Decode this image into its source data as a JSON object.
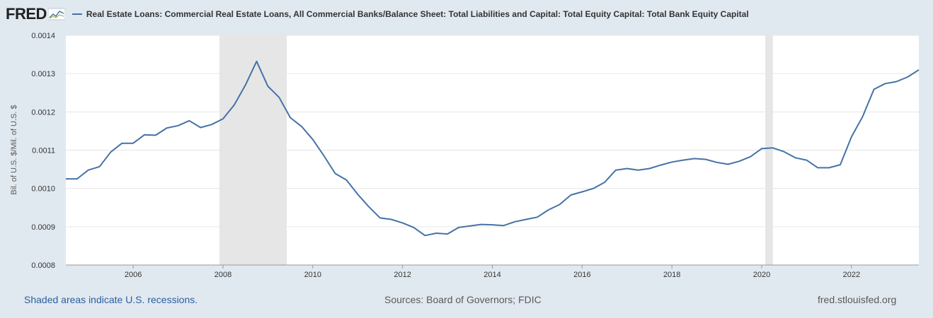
{
  "header": {
    "logo_text": "FRED",
    "legend_label": "Real Estate Loans: Commercial Real Estate Loans, All Commercial Banks/Balance Sheet: Total Liabilities and Capital: Total Equity Capital: Total Bank Equity Capital"
  },
  "footer": {
    "recessions_note": "Shaded areas indicate U.S. recessions.",
    "sources": "Sources: Board of Governors; FDIC",
    "site": "fred.stlouisfed.org"
  },
  "colors": {
    "line": "#4572a7",
    "background": "#e1e9f0",
    "plot_background": "#ffffff",
    "recession_shade": "#e6e6e6",
    "grid": "#e6e6e6"
  },
  "chart_data": {
    "type": "line",
    "title": "",
    "xlabel": "",
    "ylabel": "Bil. of U.S. $/Mil. of U.S. $",
    "ylim": [
      0.0008,
      0.0014
    ],
    "xlim": [
      2004.5,
      2023.5
    ],
    "yticks": [
      "0.0008",
      "0.0009",
      "0.0010",
      "0.0011",
      "0.0012",
      "0.0013",
      "0.0014"
    ],
    "xticks": [
      "2006",
      "2008",
      "2010",
      "2012",
      "2014",
      "2016",
      "2018",
      "2020",
      "2022"
    ],
    "grid": true,
    "recessions": [
      [
        2007.92,
        2009.42
      ],
      [
        2020.08,
        2020.25
      ]
    ],
    "series": [
      {
        "name": "Real Estate Loans: Commercial Real Estate Loans, All Commercial Banks/Balance Sheet: Total Liabilities and Capital: Total Equity Capital: Total Bank Equity Capital",
        "x": [
          2004.5,
          2004.75,
          2005,
          2005.25,
          2005.5,
          2005.75,
          2006,
          2006.25,
          2006.5,
          2006.75,
          2007,
          2007.25,
          2007.5,
          2007.75,
          2008,
          2008.25,
          2008.5,
          2008.75,
          2009,
          2009.25,
          2009.5,
          2009.75,
          2010,
          2010.25,
          2010.5,
          2010.75,
          2011,
          2011.25,
          2011.5,
          2011.75,
          2012,
          2012.25,
          2012.5,
          2012.75,
          2013,
          2013.25,
          2013.5,
          2013.75,
          2014,
          2014.25,
          2014.5,
          2014.75,
          2015,
          2015.25,
          2015.5,
          2015.75,
          2016,
          2016.25,
          2016.5,
          2016.75,
          2017,
          2017.25,
          2017.5,
          2017.75,
          2018,
          2018.25,
          2018.5,
          2018.75,
          2019,
          2019.25,
          2019.5,
          2019.75,
          2020,
          2020.25,
          2020.5,
          2020.75,
          2021,
          2021.25,
          2021.5,
          2021.75,
          2022,
          2022.25,
          2022.5,
          2022.75,
          2023,
          2023.25,
          2023.5
        ],
        "y": [
          0.001025,
          0.001025,
          0.001048,
          0.001057,
          0.001095,
          0.001118,
          0.001118,
          0.00114,
          0.001139,
          0.001158,
          0.001164,
          0.001177,
          0.001159,
          0.001167,
          0.001182,
          0.001218,
          0.00127,
          0.001332,
          0.001267,
          0.001238,
          0.001185,
          0.001162,
          0.001128,
          0.001085,
          0.001039,
          0.001022,
          0.000985,
          0.000952,
          0.000923,
          0.000919,
          0.00091,
          0.000898,
          0.000877,
          0.000883,
          0.000881,
          0.000898,
          0.000902,
          0.000906,
          0.000905,
          0.000903,
          0.000913,
          0.000919,
          0.000925,
          0.000944,
          0.000958,
          0.000983,
          0.000991,
          0.001,
          0.001016,
          0.001048,
          0.001052,
          0.001048,
          0.001052,
          0.001061,
          0.001069,
          0.001074,
          0.001078,
          0.001076,
          0.001068,
          0.001063,
          0.001071,
          0.001083,
          0.001104,
          0.001106,
          0.001096,
          0.00108,
          0.001074,
          0.001054,
          0.001054,
          0.001062,
          0.001135,
          0.001188,
          0.001259,
          0.001274,
          0.001279,
          0.001291,
          0.00131
        ]
      }
    ]
  }
}
